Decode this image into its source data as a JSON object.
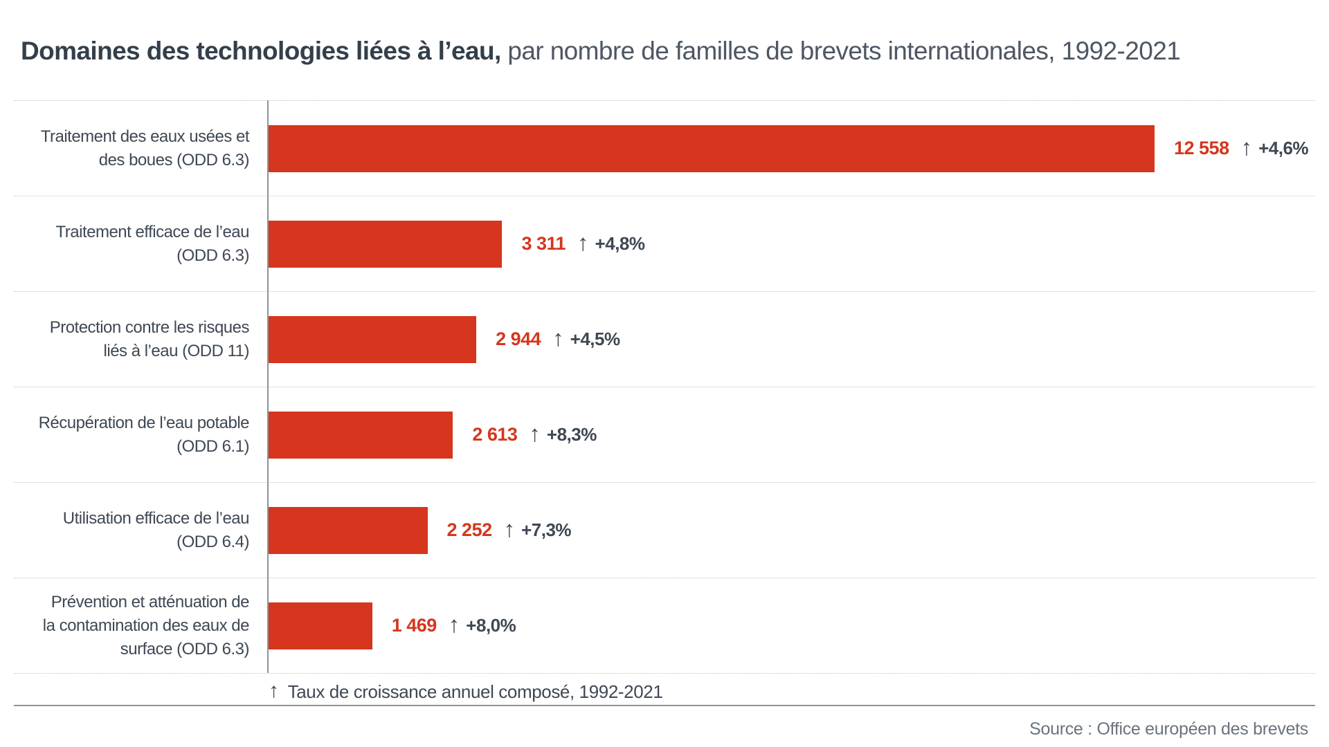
{
  "header": {
    "title_bold": "Domaines des technologies liées à l’eau,",
    "title_regular": " par nombre de familles de brevets internationales, 1992-2021"
  },
  "chart_data": {
    "type": "bar",
    "orientation": "horizontal",
    "title": "Domaines des technologies liées à l’eau, par nombre de familles de brevets internationales, 1992-2021",
    "value_axis": "Nombre de familles de brevets internationales",
    "xlim": [
      0,
      12558
    ],
    "bar_color": "#d5361d",
    "arrow_glyph": "↑",
    "categories": [
      "Traitement des eaux usées et des boues (ODD 6.3)",
      "Traitement efficace de l’eau (ODD 6.3)",
      "Protection contre les risques liés à l’eau (ODD 11)",
      "Récupération de l’eau potable (ODD 6.1)",
      "Utilisation efficace de l’eau (ODD 6.4)",
      "Prévention et atténuation de la contamination des eaux de surface (ODD 6.3)"
    ],
    "rows": [
      {
        "label_lines": [
          "Traitement des eaux usées et",
          "des boues (ODD 6.3)"
        ],
        "value": 12558,
        "value_label": "12 558",
        "growth": "+4,6%"
      },
      {
        "label_lines": [
          "Traitement efficace de l’eau",
          "(ODD 6.3)"
        ],
        "value": 3311,
        "value_label": "3 311",
        "growth": "+4,8%"
      },
      {
        "label_lines": [
          "Protection contre les risques",
          "liés à l’eau (ODD 11)"
        ],
        "value": 2944,
        "value_label": "2 944",
        "growth": "+4,5%"
      },
      {
        "label_lines": [
          "Récupération de l’eau potable",
          "(ODD 6.1)"
        ],
        "value": 2613,
        "value_label": "2 613",
        "growth": "+8,3%"
      },
      {
        "label_lines": [
          "Utilisation efficace de l’eau",
          "(ODD 6.4)"
        ],
        "value": 2252,
        "value_label": "2 252",
        "growth": "+7,3%"
      },
      {
        "label_lines": [
          "Prévention et atténuation de",
          "la contamination des eaux de",
          "surface (ODD 6.3)"
        ],
        "value": 1469,
        "value_label": "1 469",
        "growth": "+8,0%"
      }
    ],
    "footnote": "Taux de croissance annuel composé, 1992-2021"
  },
  "footer": {
    "source": "Source : Office européen des brevets"
  }
}
